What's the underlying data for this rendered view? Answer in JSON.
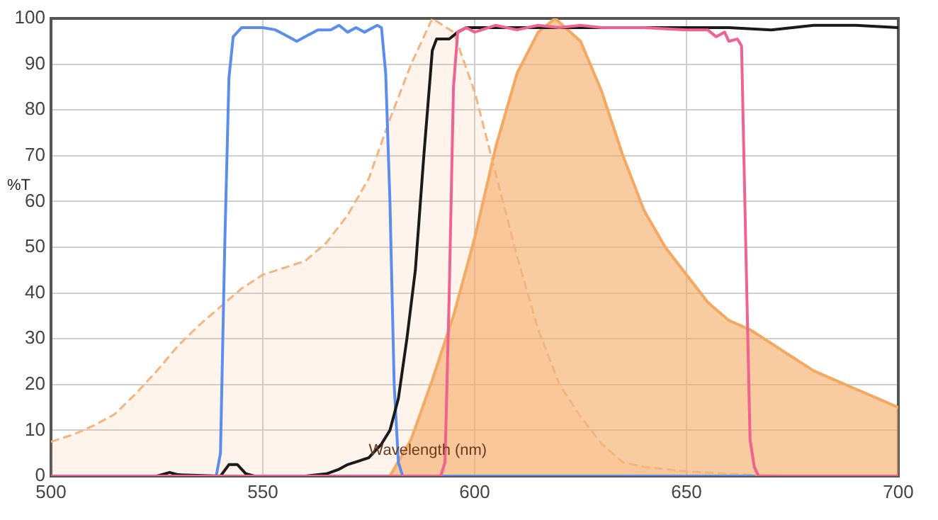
{
  "chart_data": {
    "type": "line",
    "xlabel": "Wavelength (nm)",
    "ylabel": "%T",
    "xlim": [
      500,
      700
    ],
    "xticks": [
      500,
      550,
      600,
      650,
      700
    ],
    "ylim": [
      0,
      100
    ],
    "yticks": [
      0,
      10,
      20,
      30,
      40,
      50,
      60,
      70,
      80,
      90,
      100
    ],
    "grid": true,
    "legend": false,
    "marker": "none",
    "series": [
      {
        "type": "area",
        "line_style": "dashed",
        "color": "#f5b47c",
        "x": [
          500,
          505,
          510,
          515,
          520,
          525,
          530,
          535,
          540,
          545,
          550,
          555,
          560,
          565,
          570,
          575,
          580,
          585,
          590,
          595,
          600,
          605,
          610,
          615,
          620,
          625,
          630,
          635,
          640,
          650,
          660,
          675
        ],
        "values": [
          7.5,
          9,
          11,
          13.5,
          18,
          23,
          28.5,
          33,
          37,
          41,
          44,
          45.5,
          47,
          51,
          57,
          65,
          78,
          90,
          100,
          97,
          84,
          66,
          48,
          32,
          20,
          13,
          7,
          3,
          2,
          1,
          0.5,
          0
        ]
      },
      {
        "type": "area",
        "line_style": "solid",
        "color": "#f5a860",
        "x": [
          580,
          585,
          590,
          595,
          600,
          605,
          610,
          615,
          619,
          625,
          630,
          635,
          640,
          645,
          650,
          655,
          660,
          665,
          670,
          675,
          680,
          685,
          690,
          695,
          700
        ],
        "values": [
          0,
          8,
          21,
          35,
          52,
          72,
          88,
          97,
          100,
          95,
          84,
          70,
          58,
          50,
          44,
          38,
          34,
          32,
          29,
          26,
          23,
          21,
          19,
          17,
          15
        ]
      },
      {
        "type": "line",
        "line_style": "solid",
        "color": "#5b8def",
        "x": [
          538,
          539,
          540,
          541,
          542,
          543,
          545,
          547,
          550,
          553,
          556,
          558,
          560,
          563,
          566,
          568,
          570,
          572,
          574,
          577,
          578,
          579,
          580,
          581,
          582,
          583,
          666
        ],
        "values": [
          0,
          0,
          5,
          50,
          87,
          96,
          98,
          98,
          98,
          97.5,
          96,
          95,
          96,
          97.5,
          97.5,
          98.5,
          97,
          98,
          97,
          98.5,
          98,
          88,
          60,
          20,
          3,
          0,
          0
        ]
      },
      {
        "type": "line",
        "line_style": "solid",
        "color": "#1a1a1a",
        "x": [
          500,
          525,
          528,
          530,
          540,
          542,
          544,
          546,
          548,
          560,
          565,
          568,
          570,
          575,
          578,
          580,
          582,
          584,
          586,
          588,
          590,
          591,
          594,
          596,
          598,
          620,
          650,
          660,
          670,
          680,
          690,
          700
        ],
        "values": [
          0,
          0,
          0.8,
          0.3,
          0,
          2.5,
          2.5,
          0.5,
          0,
          0,
          0.5,
          1.5,
          2.5,
          4,
          7,
          10,
          17,
          30,
          45,
          70,
          93,
          95.5,
          95.5,
          97,
          98,
          98,
          98,
          98,
          97.5,
          98.5,
          98.5,
          98
        ]
      },
      {
        "type": "line",
        "line_style": "solid",
        "color": "#f0628f",
        "x": [
          500,
          592,
          593,
          594,
          595,
          596,
          598,
          600,
          605,
          610,
          615,
          620,
          625,
          630,
          640,
          650,
          655,
          657,
          659,
          660,
          662,
          663,
          664,
          665,
          666,
          667,
          700
        ],
        "values": [
          0,
          0,
          3,
          40,
          85,
          97,
          98,
          97,
          98.5,
          97.5,
          98.5,
          98,
          98.5,
          98,
          98,
          97.5,
          97.5,
          96,
          97,
          95,
          95.5,
          94,
          50,
          8,
          2,
          0,
          0
        ]
      }
    ]
  }
}
